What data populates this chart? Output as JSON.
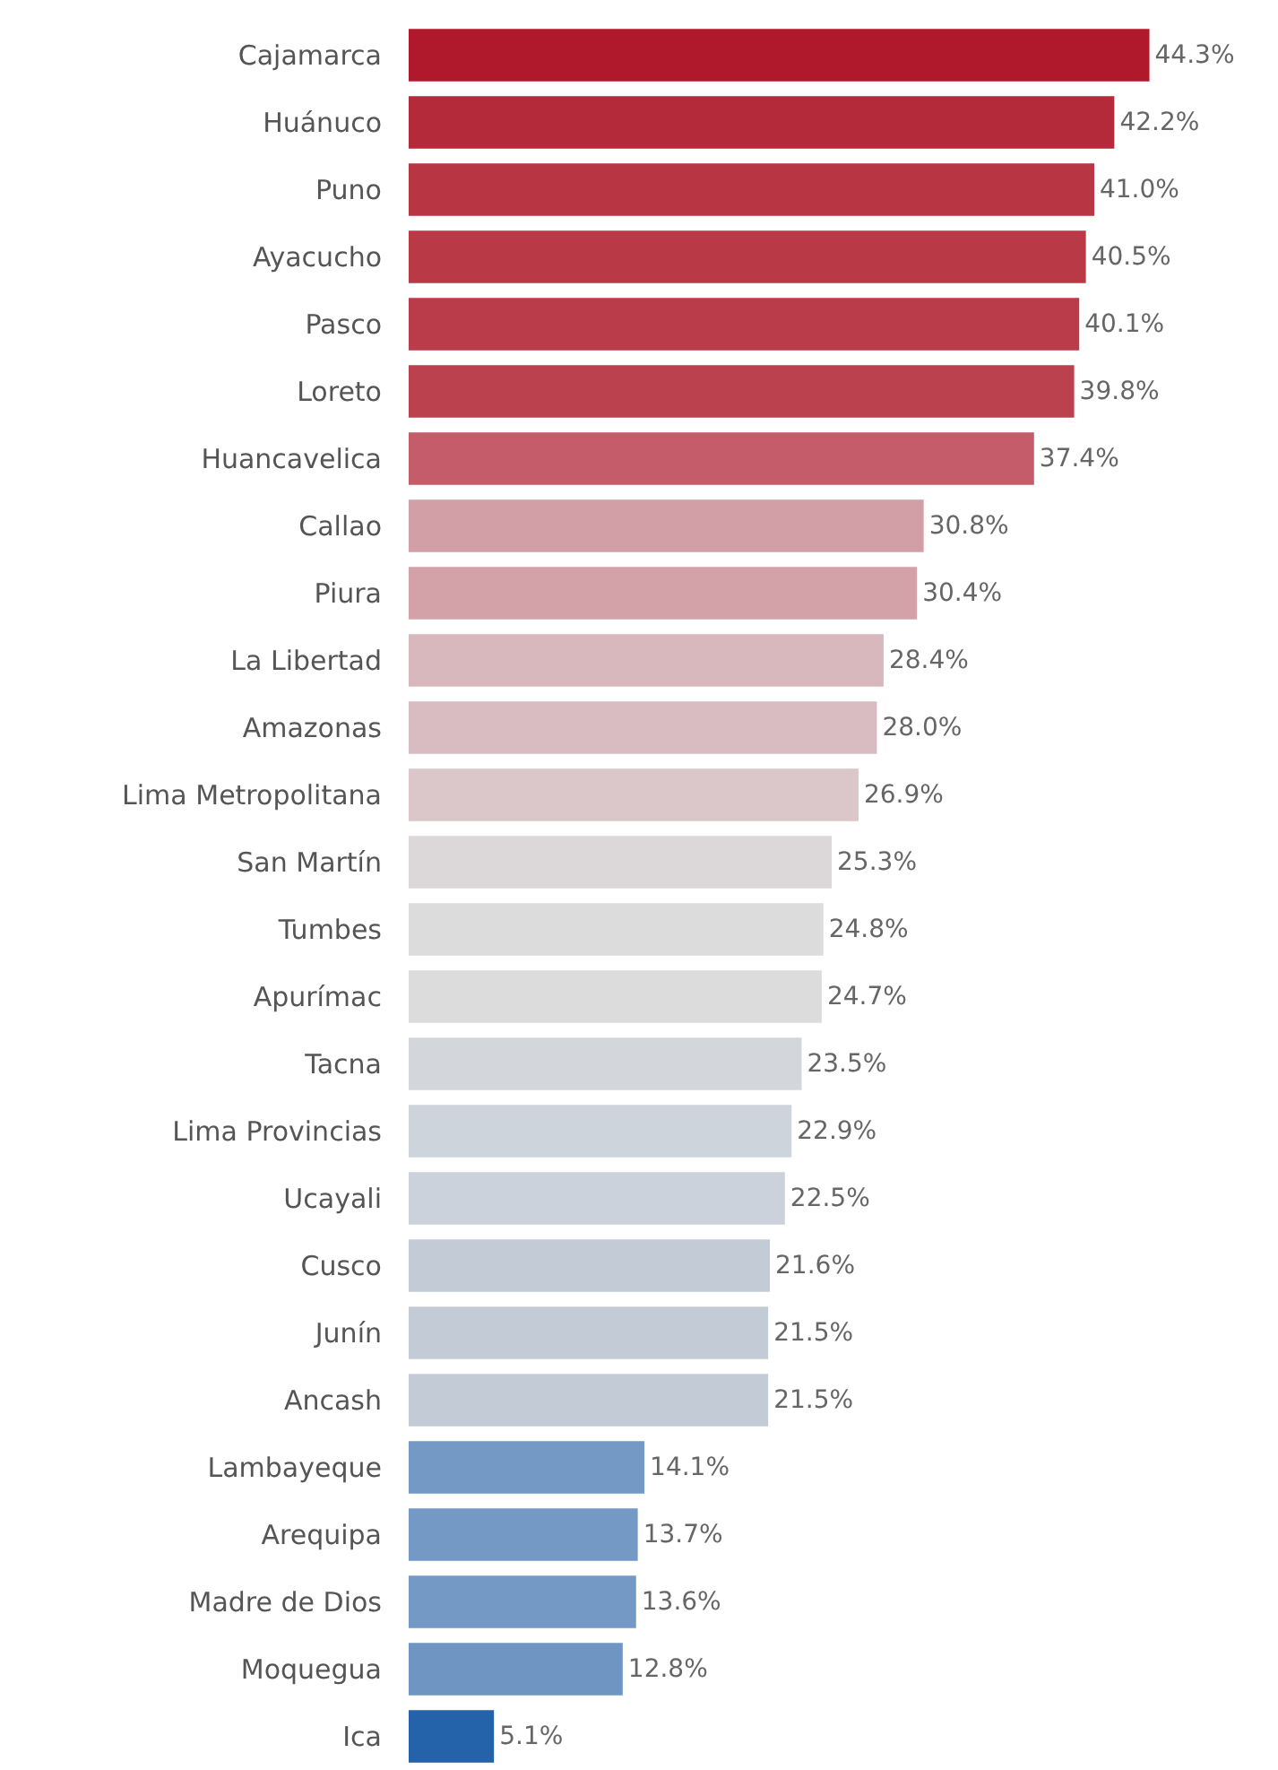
{
  "chart_data": {
    "type": "bar",
    "orientation": "horizontal",
    "categories": [
      "Cajamarca",
      "Huánuco",
      "Puno",
      "Ayacucho",
      "Pasco",
      "Loreto",
      "Huancavelica",
      "Callao",
      "Piura",
      "La Libertad",
      "Amazonas",
      "Lima Metropolitana",
      "San Martín",
      "Tumbes",
      "Apurímac",
      "Tacna",
      "Lima Provincias",
      "Ucayali",
      "Cusco",
      "Junín",
      "Ancash",
      "Lambayeque",
      "Arequipa",
      "Madre de Dios",
      "Moquegua",
      "Ica"
    ],
    "values": [
      44.3,
      42.2,
      41.0,
      40.5,
      40.1,
      39.8,
      37.4,
      30.8,
      30.4,
      28.4,
      28.0,
      26.9,
      25.3,
      24.8,
      24.7,
      23.5,
      22.9,
      22.5,
      21.6,
      21.5,
      21.5,
      14.1,
      13.7,
      13.6,
      12.8,
      5.1
    ],
    "value_labels": [
      "44.3%",
      "42.2%",
      "41.0%",
      "40.5%",
      "40.1%",
      "39.8%",
      "37.4%",
      "30.8%",
      "30.4%",
      "28.4%",
      "28.0%",
      "26.9%",
      "25.3%",
      "24.8%",
      "24.7%",
      "23.5%",
      "22.9%",
      "22.5%",
      "21.6%",
      "21.5%",
      "21.5%",
      "14.1%",
      "13.7%",
      "13.6%",
      "12.8%",
      "5.1%"
    ],
    "colors": [
      "#b0192c",
      "#b52a3b",
      "#b83544",
      "#b93947",
      "#ba3c4a",
      "#bb414f",
      "#c45d69",
      "#d29fa6",
      "#d3a2a9",
      "#d8b8bd",
      "#d9bcc1",
      "#dbc6c9",
      "#dcd7d8",
      "#dcdcdc",
      "#dcdcdc",
      "#d3d7dc",
      "#cdd4dc",
      "#cbd2db",
      "#c3ccd6",
      "#c3ccd6",
      "#c3ccd6",
      "#7399c4",
      "#7399c4",
      "#7399c4",
      "#6f96c2",
      "#2462aa"
    ]
  }
}
